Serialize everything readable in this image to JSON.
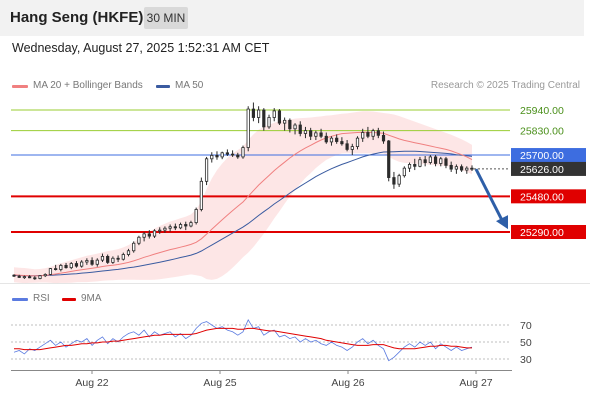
{
  "header": {
    "title": "Hang Seng (HKFE)",
    "timeframe": "30 MIN"
  },
  "datetime": "Wednesday, August 27, 2025 1:52:31 AM CET",
  "credit": "Research © 2025 Trading Central",
  "colors": {
    "candle": "#2b2b2b",
    "ma20": "#f08080",
    "bollinger_fill": "#fde2e2",
    "ma50": "#3a5ba0",
    "resistance": "#9acd32",
    "pivot": "#3d6de0",
    "support": "#e00000",
    "arrow": "#2e5fa8",
    "rsi": "#5b7be0",
    "rsi_ma": "#e00000"
  },
  "chart_data": [
    {
      "type": "line",
      "title": "",
      "legend": [
        {
          "name": "MA 20 + Bollinger Bands",
          "color": "#f08080"
        },
        {
          "name": "MA 50",
          "color": "#3a5ba0"
        }
      ],
      "x_ticks": [
        "Aug 22",
        "Aug 25",
        "Aug 26",
        "Aug 27"
      ],
      "ylim": [
        24950,
        26050
      ],
      "levels": [
        {
          "value": 25940,
          "label": "25940.00",
          "kind": "resistance"
        },
        {
          "value": 25830,
          "label": "25830.00",
          "kind": "resistance"
        },
        {
          "value": 25700,
          "label": "25700.00",
          "kind": "pivot"
        },
        {
          "value": 25626,
          "label": "25626.00",
          "kind": "last"
        },
        {
          "value": 25480,
          "label": "25480.00",
          "kind": "support"
        },
        {
          "value": 25290,
          "label": "25290.00",
          "kind": "support"
        }
      ],
      "forecast_arrow": {
        "from": 25625,
        "to": 25305
      },
      "candles": [
        [
          25060,
          25065,
          25050,
          25055
        ],
        [
          25055,
          25062,
          25045,
          25048
        ],
        [
          25048,
          25058,
          25040,
          25052
        ],
        [
          25052,
          25060,
          25044,
          25046
        ],
        [
          25046,
          25055,
          25035,
          25042
        ],
        [
          25042,
          25060,
          25038,
          25057
        ],
        [
          25057,
          25070,
          25050,
          25064
        ],
        [
          25064,
          25098,
          25060,
          25095
        ],
        [
          25095,
          25115,
          25085,
          25090
        ],
        [
          25090,
          25120,
          25080,
          25112
        ],
        [
          25112,
          25125,
          25095,
          25100
        ],
        [
          25100,
          25130,
          25092,
          25122
        ],
        [
          25122,
          25135,
          25100,
          25108
        ],
        [
          25108,
          25140,
          25100,
          25130
        ],
        [
          25130,
          25150,
          25115,
          25138
        ],
        [
          25138,
          25155,
          25110,
          25118
        ],
        [
          25118,
          25150,
          25105,
          25140
        ],
        [
          25140,
          25175,
          25130,
          25160
        ],
        [
          25160,
          25170,
          25120,
          25128
        ],
        [
          25128,
          25160,
          25120,
          25150
        ],
        [
          25150,
          25165,
          25130,
          25145
        ],
        [
          25145,
          25180,
          25138,
          25170
        ],
        [
          25170,
          25200,
          25160,
          25190
        ],
        [
          25190,
          25240,
          25180,
          25230
        ],
        [
          25230,
          25270,
          25220,
          25262
        ],
        [
          25262,
          25290,
          25240,
          25280
        ],
        [
          25280,
          25300,
          25255,
          25268
        ],
        [
          25268,
          25305,
          25258,
          25296
        ],
        [
          25296,
          25315,
          25280,
          25300
        ],
        [
          25300,
          25320,
          25285,
          25310
        ],
        [
          25310,
          25330,
          25292,
          25318
        ],
        [
          25318,
          25335,
          25300,
          25312
        ],
        [
          25312,
          25340,
          25305,
          25330
        ],
        [
          25330,
          25345,
          25300,
          25322
        ],
        [
          25322,
          25350,
          25315,
          25340
        ],
        [
          25340,
          25420,
          25330,
          25410
        ],
        [
          25410,
          25580,
          25400,
          25560
        ],
        [
          25560,
          25690,
          25540,
          25680
        ],
        [
          25680,
          25715,
          25660,
          25698
        ],
        [
          25698,
          25720,
          25675,
          25690
        ],
        [
          25690,
          25718,
          25678,
          25712
        ],
        [
          25712,
          25730,
          25695,
          25705
        ],
        [
          25705,
          25725,
          25690,
          25700
        ],
        [
          25700,
          25712,
          25680,
          25690
        ],
        [
          25690,
          25750,
          25680,
          25740
        ],
        [
          25740,
          25960,
          25720,
          25945
        ],
        [
          25945,
          25980,
          25880,
          25900
        ],
        [
          25900,
          25960,
          25870,
          25940
        ],
        [
          25940,
          25950,
          25830,
          25850
        ],
        [
          25850,
          25915,
          25840,
          25900
        ],
        [
          25900,
          25950,
          25880,
          25935
        ],
        [
          25935,
          25945,
          25860,
          25870
        ],
        [
          25870,
          25900,
          25830,
          25885
        ],
        [
          25885,
          25895,
          25820,
          25840
        ],
        [
          25840,
          25870,
          25810,
          25860
        ],
        [
          25860,
          25880,
          25800,
          25815
        ],
        [
          25815,
          25850,
          25790,
          25830
        ],
        [
          25830,
          25845,
          25780,
          25800
        ],
        [
          25800,
          25830,
          25780,
          25818
        ],
        [
          25818,
          25840,
          25790,
          25800
        ],
        [
          25800,
          25820,
          25760,
          25770
        ],
        [
          25770,
          25800,
          25750,
          25790
        ],
        [
          25790,
          25810,
          25760,
          25772
        ],
        [
          25772,
          25795,
          25750,
          25760
        ],
        [
          25760,
          25780,
          25720,
          25730
        ],
        [
          25730,
          25760,
          25700,
          25745
        ],
        [
          25745,
          25800,
          25730,
          25790
        ],
        [
          25790,
          25840,
          25770,
          25820
        ],
        [
          25820,
          25850,
          25790,
          25800
        ],
        [
          25800,
          25840,
          25780,
          25830
        ],
        [
          25830,
          25845,
          25790,
          25805
        ],
        [
          25805,
          25825,
          25760,
          25775
        ],
        [
          25775,
          25780,
          25560,
          25580
        ],
        [
          25580,
          25610,
          25520,
          25545
        ],
        [
          25545,
          25600,
          25530,
          25590
        ],
        [
          25590,
          25640,
          25580,
          25630
        ],
        [
          25630,
          25660,
          25610,
          25650
        ],
        [
          25650,
          25680,
          25620,
          25640
        ],
        [
          25640,
          25690,
          25635,
          25675
        ],
        [
          25675,
          25695,
          25640,
          25660
        ],
        [
          25660,
          25700,
          25650,
          25690
        ],
        [
          25690,
          25700,
          25640,
          25655
        ],
        [
          25655,
          25690,
          25640,
          25680
        ],
        [
          25680,
          25690,
          25630,
          25645
        ],
        [
          25645,
          25665,
          25610,
          25625
        ],
        [
          25625,
          25650,
          25600,
          25638
        ],
        [
          25638,
          25650,
          25610,
          25620
        ],
        [
          25620,
          25640,
          25600,
          25630
        ],
        [
          25630,
          25645,
          25615,
          25626
        ]
      ],
      "ma20": [
        25062,
        25060,
        25058,
        25057,
        25056,
        25057,
        25059,
        25062,
        25066,
        25071,
        25075,
        25080,
        25085,
        25089,
        25093,
        25097,
        25101,
        25106,
        25110,
        25113,
        25117,
        25122,
        25128,
        25136,
        25145,
        25155,
        25163,
        25172,
        25180,
        25188,
        25196,
        25202,
        25209,
        25216,
        25224,
        25235,
        25254,
        25279,
        25305,
        25330,
        25355,
        25380,
        25404,
        25427,
        25450,
        25480,
        25510,
        25540,
        25566,
        25591,
        25617,
        25640,
        25662,
        25684,
        25704,
        25722,
        25738,
        25752,
        25767,
        25780,
        25792,
        25800,
        25808,
        25814,
        25816,
        25818,
        25820,
        25821,
        25821,
        25820,
        25818,
        25816,
        25806,
        25796,
        25786,
        25778,
        25772,
        25766,
        25760,
        25754,
        25748,
        25742,
        25736,
        25730,
        25722,
        25712,
        25702,
        25690,
        25676
      ],
      "ma50": [
        25058,
        25058,
        25057,
        25057,
        25057,
        25058,
        25058,
        25059,
        25061,
        25062,
        25064,
        25066,
        25068,
        25071,
        25073,
        25076,
        25079,
        25082,
        25085,
        25088,
        25091,
        25095,
        25099,
        25103,
        25108,
        25113,
        25118,
        25123,
        25129,
        25135,
        25141,
        25147,
        25154,
        25160,
        25167,
        25176,
        25189,
        25205,
        25220,
        25236,
        25252,
        25268,
        25284,
        25300,
        25316,
        25335,
        25356,
        25378,
        25398,
        25418,
        25439,
        25458,
        25477,
        25497,
        25516,
        25534,
        25551,
        25568,
        25585,
        25600,
        25614,
        25627,
        25639,
        25650,
        25660,
        25670,
        25680,
        25690,
        25698,
        25705,
        25711,
        25716,
        25717,
        25718,
        25719,
        25720,
        25720,
        25720,
        25719,
        25717,
        25715,
        25713,
        25711,
        25709,
        25706,
        25702,
        25699,
        25696,
        25693
      ],
      "bb_width": [
        40,
        40,
        40,
        38,
        36,
        36,
        38,
        42,
        48,
        52,
        56,
        60,
        63,
        66,
        70,
        72,
        74,
        76,
        78,
        80,
        82,
        86,
        92,
        100,
        110,
        120,
        128,
        136,
        142,
        146,
        150,
        152,
        154,
        156,
        160,
        175,
        200,
        240,
        270,
        290,
        300,
        305,
        305,
        300,
        295,
        300,
        300,
        295,
        285,
        270,
        255,
        240,
        222,
        205,
        190,
        175,
        160,
        148,
        136,
        126,
        118,
        112,
        108,
        106,
        106,
        108,
        110,
        112,
        112,
        112,
        110,
        108,
        115,
        120,
        122,
        120,
        116,
        112,
        108,
        104,
        100,
        96,
        92,
        88,
        86,
        84,
        82,
        80,
        78
      ]
    },
    {
      "type": "line",
      "title": "",
      "legend": [
        {
          "name": "RSI",
          "color": "#5b7be0"
        },
        {
          "name": "9MA",
          "color": "#e00000"
        }
      ],
      "ylim": [
        20,
        80
      ],
      "ticks": [
        {
          "value": 70,
          "label": "70"
        },
        {
          "value": 50,
          "label": "50"
        },
        {
          "value": 30,
          "label": "30"
        }
      ],
      "rsi": [
        38,
        40,
        36,
        42,
        40,
        44,
        48,
        52,
        46,
        50,
        44,
        48,
        52,
        50,
        54,
        46,
        52,
        56,
        48,
        54,
        50,
        56,
        60,
        62,
        58,
        64,
        56,
        62,
        58,
        60,
        62,
        56,
        60,
        54,
        58,
        66,
        72,
        74,
        70,
        66,
        68,
        64,
        62,
        58,
        62,
        76,
        66,
        68,
        58,
        62,
        64,
        56,
        58,
        54,
        56,
        50,
        54,
        50,
        52,
        48,
        46,
        50,
        46,
        44,
        40,
        44,
        50,
        54,
        48,
        52,
        46,
        42,
        28,
        32,
        38,
        44,
        48,
        44,
        50,
        46,
        50,
        42,
        48,
        44,
        40,
        44,
        40,
        42,
        44
      ],
      "rsi_ma": [
        42,
        42,
        41,
        41,
        41,
        41,
        42,
        43,
        44,
        45,
        46,
        46,
        47,
        48,
        48,
        49,
        49,
        50,
        50,
        51,
        51,
        52,
        53,
        54,
        55,
        56,
        57,
        58,
        58,
        59,
        59,
        59,
        59,
        59,
        59,
        60,
        62,
        64,
        65,
        66,
        66,
        66,
        66,
        65,
        65,
        66,
        66,
        65,
        64,
        63,
        63,
        62,
        61,
        60,
        59,
        58,
        57,
        56,
        55,
        54,
        52,
        51,
        50,
        49,
        48,
        47,
        46,
        46,
        46,
        47,
        47,
        47,
        45,
        43,
        42,
        42,
        42,
        42,
        43,
        44,
        45,
        45,
        46,
        46,
        45,
        45,
        44,
        43,
        43
      ]
    }
  ]
}
